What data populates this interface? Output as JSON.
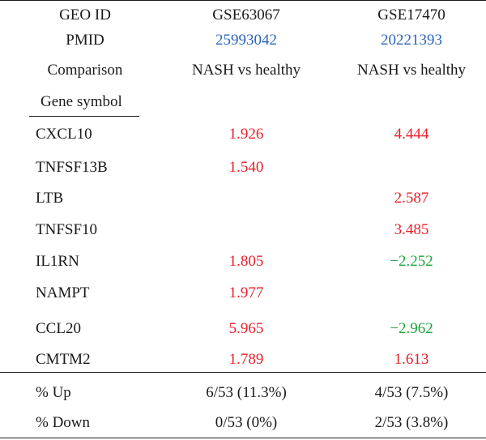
{
  "header": {
    "geo_label": "GEO ID",
    "geo_ids": [
      "GSE63067",
      "GSE17470"
    ],
    "pmid_label": "PMID",
    "pmids": [
      "25993042",
      "20221393"
    ],
    "comparison_label": "Comparison",
    "comparisons": [
      "NASH vs healthy",
      "NASH vs healthy"
    ],
    "gene_symbol_label": "Gene symbol"
  },
  "colors": {
    "up": "#e8202a",
    "down": "#1fa43a",
    "link": "#2a64b8"
  },
  "genes": [
    {
      "symbol": "CXCL10",
      "gse63067": "1.926",
      "gse17470": "4.444",
      "dir63067": "up",
      "dir17470": "up"
    },
    {
      "symbol": "TNFSF13B",
      "gse63067": "1.540",
      "gse17470": "",
      "dir63067": "up",
      "dir17470": ""
    },
    {
      "symbol": "LTB",
      "gse63067": "",
      "gse17470": "2.587",
      "dir63067": "",
      "dir17470": "up"
    },
    {
      "symbol": "TNFSF10",
      "gse63067": "",
      "gse17470": "3.485",
      "dir63067": "",
      "dir17470": "up"
    },
    {
      "symbol": "IL1RN",
      "gse63067": "1.805",
      "gse17470": "−2.252",
      "dir63067": "up",
      "dir17470": "down"
    },
    {
      "symbol": "NAMPT",
      "gse63067": "1.977",
      "gse17470": "",
      "dir63067": "up",
      "dir17470": ""
    },
    {
      "symbol": "CCL20",
      "gse63067": "5.965",
      "gse17470": "−2.962",
      "dir63067": "up",
      "dir17470": "down"
    },
    {
      "symbol": "CMTM2",
      "gse63067": "1.789",
      "gse17470": "1.613",
      "dir63067": "up",
      "dir17470": "up"
    }
  ],
  "summary": [
    {
      "label": "% Up",
      "gse63067": "6/53 (11.3%)",
      "gse17470": "4/53 (7.5%)"
    },
    {
      "label": "% Down",
      "gse63067": "0/53 (0%)",
      "gse17470": "2/53 (3.8%)"
    }
  ]
}
